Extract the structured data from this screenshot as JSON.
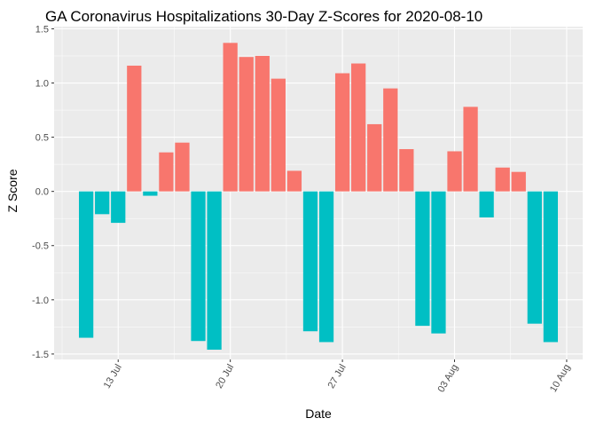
{
  "chart_data": {
    "type": "bar",
    "title": "GA Coronavirus Hospitalizations 30-Day Z-Scores for 2020-08-10",
    "xlabel": "Date",
    "ylabel": "Z Score",
    "x": [
      "2020-07-11",
      "2020-07-12",
      "2020-07-13",
      "2020-07-14",
      "2020-07-15",
      "2020-07-16",
      "2020-07-17",
      "2020-07-18",
      "2020-07-19",
      "2020-07-20",
      "2020-07-21",
      "2020-07-22",
      "2020-07-23",
      "2020-07-24",
      "2020-07-25",
      "2020-07-26",
      "2020-07-27",
      "2020-07-28",
      "2020-07-29",
      "2020-07-30",
      "2020-07-31",
      "2020-08-01",
      "2020-08-02",
      "2020-08-03",
      "2020-08-04",
      "2020-08-05",
      "2020-08-06",
      "2020-08-07",
      "2020-08-08",
      "2020-08-09",
      "2020-08-10"
    ],
    "values": [
      -1.35,
      -0.21,
      -0.29,
      1.16,
      -0.04,
      0.36,
      0.45,
      -1.38,
      -1.46,
      1.37,
      1.24,
      1.25,
      1.04,
      0.19,
      -1.29,
      -1.39,
      1.09,
      1.18,
      0.62,
      0.95,
      0.39,
      -1.24,
      -1.31,
      0.37,
      0.78,
      -0.24,
      0.22,
      0.18,
      -1.22,
      -1.39,
      0
    ],
    "x_ticks": [
      {
        "date": "2020-07-13",
        "label": "13 Jul"
      },
      {
        "date": "2020-07-20",
        "label": "20 Jul"
      },
      {
        "date": "2020-07-27",
        "label": "27 Jul"
      },
      {
        "date": "2020-08-03",
        "label": "03 Aug"
      },
      {
        "date": "2020-08-10",
        "label": "10 Aug"
      }
    ],
    "y_ticks": [
      1.5,
      1.0,
      0.5,
      0.0,
      -0.5,
      -1.0,
      -1.5
    ],
    "y_tick_labels": [
      "1.5",
      "1.0",
      "0.5",
      "0.0",
      "-0.5",
      "-1.0",
      "-1.5"
    ],
    "xlim": [
      "2020-07-09",
      "2020-08-11"
    ],
    "ylim": [
      -1.55,
      1.52
    ],
    "grid": true,
    "legend": "none",
    "colors": {
      "positive": "#F8766D",
      "negative": "#00BFC4",
      "panel": "#EBEBEB",
      "grid_major": "#FFFFFF"
    }
  }
}
